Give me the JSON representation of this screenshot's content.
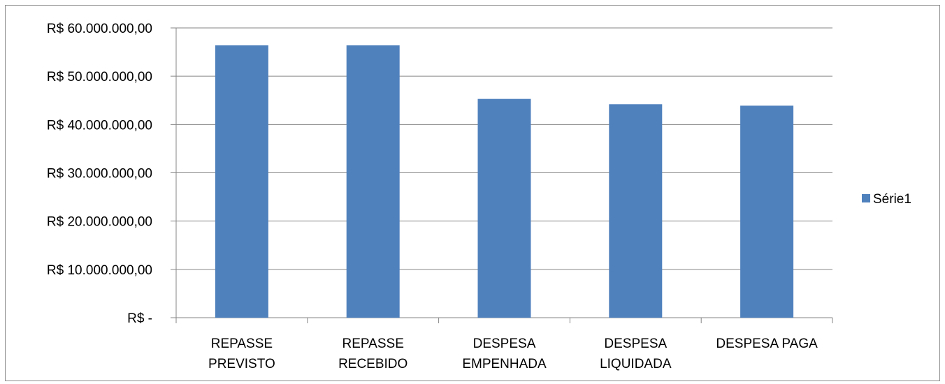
{
  "chart_data": {
    "type": "bar",
    "categories": [
      [
        "REPASSE",
        "PREVISTO"
      ],
      [
        "REPASSE",
        "RECEBIDO"
      ],
      [
        "DESPESA",
        "EMPENHADA"
      ],
      [
        "DESPESA",
        "LIQUIDADA"
      ],
      [
        "DESPESA PAGA"
      ]
    ],
    "series": [
      {
        "name": "Série1",
        "values": [
          56400000,
          56400000,
          45300000,
          44200000,
          43900000
        ]
      }
    ],
    "ylim": [
      0,
      60000000
    ],
    "yticks": [
      0,
      10000000,
      20000000,
      30000000,
      40000000,
      50000000,
      60000000
    ],
    "ytick_labels": [
      "R$ -",
      "R$ 10.000.000,00",
      "R$ 20.000.000,00",
      "R$ 30.000.000,00",
      "R$ 40.000.000,00",
      "R$ 50.000.000,00",
      "R$ 60.000.000,00"
    ],
    "grid": true,
    "legend": "right",
    "bar_color": "#4f81bd",
    "grid_color": "#868686",
    "title": "",
    "xlabel": "",
    "ylabel": ""
  }
}
